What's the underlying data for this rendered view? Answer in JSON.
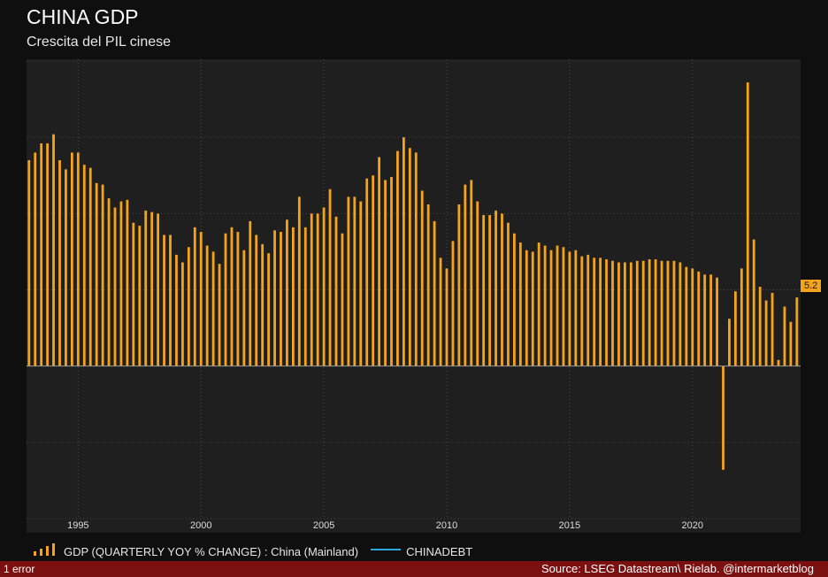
{
  "title": "CHINA GDP",
  "subtitle": "Crescita del PIL cinese",
  "colors": {
    "bar": "#f5a31a",
    "line": "#29a8e0",
    "background": "#0f0f0f",
    "panel": "#1f1f1f",
    "footer": "#7a1010"
  },
  "legend": [
    {
      "label": "GDP (QUARTERLY YOY % CHANGE) : China (Mainland)",
      "icon": "bar-series-icon"
    },
    {
      "label": "CHINADEBT",
      "icon": "line-series-icon"
    }
  ],
  "footer": {
    "errors": "1 error",
    "source": "Source: LSEG Datastream\\ Rielab. @intermarketblog"
  },
  "chart_data": {
    "type": "bar",
    "title": "CHINA GDP",
    "subtitle": "Crescita del PIL cinese",
    "xlabel": "",
    "ylabel": "",
    "ylim": [
      -10,
      20
    ],
    "yticks": [
      -10,
      -5,
      0,
      5,
      10,
      15,
      20
    ],
    "xlim": [
      1992.9,
      2024.4
    ],
    "xticks": [
      1995,
      2000,
      2005,
      2010,
      2015,
      2020
    ],
    "grid": true,
    "legend_position": "bottom",
    "last_value_label": "5.2",
    "series": [
      {
        "name": "GDP (QUARTERLY YOY % CHANGE) : China (Mainland)",
        "start_year": 1993,
        "frequency": "quarterly",
        "values": [
          13.5,
          14.0,
          14.6,
          14.6,
          15.2,
          13.5,
          12.9,
          14.0,
          14.0,
          13.2,
          13.0,
          12.0,
          11.9,
          11.0,
          10.4,
          10.8,
          10.9,
          9.4,
          9.2,
          10.2,
          10.1,
          10.0,
          8.6,
          8.6,
          7.3,
          6.8,
          7.8,
          9.1,
          8.8,
          7.9,
          7.5,
          6.7,
          8.7,
          9.1,
          8.8,
          7.6,
          9.5,
          8.6,
          8.0,
          7.4,
          8.9,
          8.8,
          9.6,
          9.1,
          11.1,
          9.1,
          10.0,
          10.0,
          10.4,
          11.6,
          9.8,
          8.7,
          11.1,
          11.1,
          10.8,
          12.3,
          12.5,
          13.7,
          12.2,
          12.4,
          14.1,
          15.0,
          14.3,
          14.0,
          11.5,
          10.6,
          9.5,
          7.1,
          6.4,
          8.2,
          10.6,
          11.9,
          12.2,
          10.8,
          9.9,
          9.9,
          10.2,
          10.0,
          9.4,
          8.7,
          8.1,
          7.6,
          7.5,
          8.1,
          7.9,
          7.6,
          7.9,
          7.8,
          7.5,
          7.6,
          7.2,
          7.3,
          7.1,
          7.1,
          7.0,
          6.9,
          6.8,
          6.8,
          6.8,
          6.9,
          6.9,
          7.0,
          7.0,
          6.9,
          6.9,
          6.9,
          6.8,
          6.5,
          6.4,
          6.2,
          6.0,
          6.0,
          5.8,
          -6.8,
          3.1,
          4.9,
          6.4,
          18.6,
          8.3,
          5.2,
          4.3,
          4.8,
          0.4,
          3.9,
          2.9,
          4.5,
          6.3,
          4.9,
          5.2
        ]
      },
      {
        "name": "CHINADEBT",
        "values": []
      }
    ]
  }
}
